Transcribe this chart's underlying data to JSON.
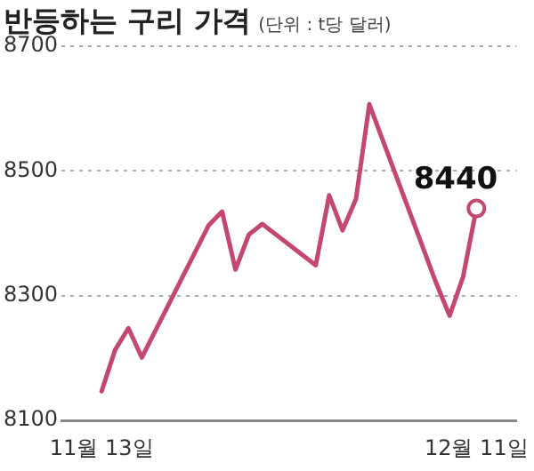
{
  "chart_data": {
    "type": "line",
    "title": "반등하는 구리 가격",
    "subtitle": "(단위 : t당 달러)",
    "x": [
      "--11-13",
      "--11-14",
      "--11-15",
      "--11-16",
      "--11-21",
      "--11-22",
      "--11-23",
      "--11-24",
      "--11-25",
      "--11-29",
      "--11-30",
      "--12-01",
      "--12-02",
      "--12-03",
      "--12-06",
      "--12-08",
      "--12-09",
      "--12-10",
      "--12-11"
    ],
    "series": [
      {
        "color": "#c4476f",
        "values": [
          8147,
          8213,
          8248,
          8201,
          8413,
          8435,
          8342,
          8398,
          8415,
          8349,
          8461,
          8405,
          8455,
          8607,
          8435,
          8320,
          8268,
          8330,
          8440
        ]
      }
    ],
    "xlim": [
      "--11-10",
      "--12-14"
    ],
    "xticks": [
      {
        "value": "--11-13",
        "label": "11월 13일"
      },
      {
        "value": "--12-11",
        "label": "12월 11일"
      }
    ],
    "ylim": [
      8100,
      8700
    ],
    "yticks": [
      8100,
      8300,
      8500,
      8700
    ],
    "grid": "y",
    "marker": "none",
    "line_style": "solid",
    "legend": false,
    "annotations": [
      {
        "text": "8440",
        "x": "--12-11",
        "y": 8440
      }
    ]
  }
}
